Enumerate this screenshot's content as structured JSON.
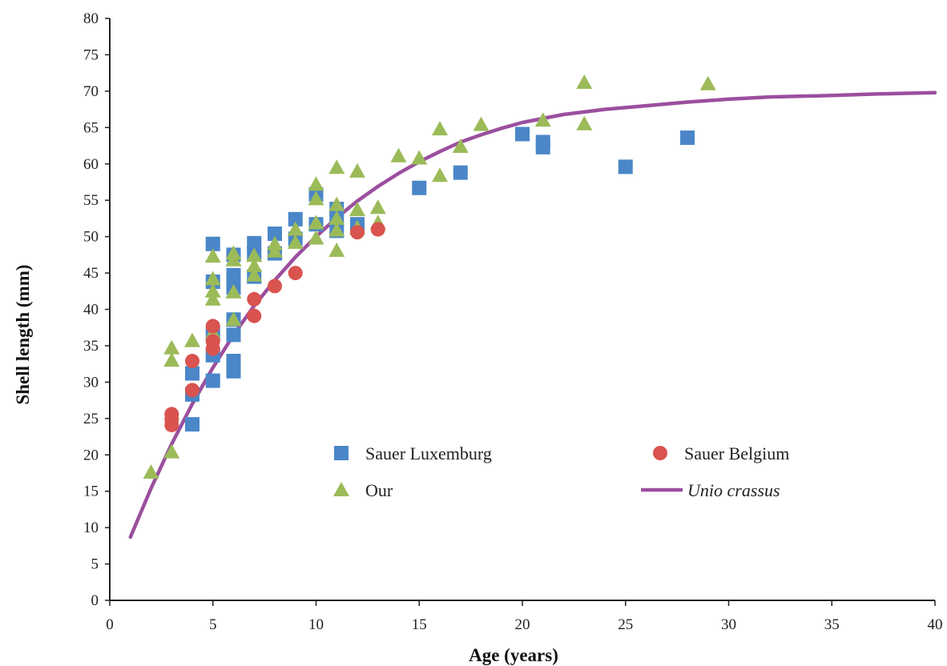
{
  "chart_data": {
    "type": "scatter",
    "xlabel": "Age (years)",
    "ylabel": "Shell length (mm)",
    "xlim": [
      0,
      40
    ],
    "ylim": [
      0,
      80
    ],
    "x_ticks": [
      0,
      5,
      10,
      15,
      20,
      25,
      30,
      35,
      40
    ],
    "y_ticks": [
      0,
      5,
      10,
      15,
      20,
      25,
      30,
      35,
      40,
      45,
      50,
      55,
      60,
      65,
      70,
      75,
      80
    ],
    "grid": false,
    "legend_position": "center-right",
    "series": [
      {
        "name": "Sauer Luxemburg",
        "marker": "square",
        "color": "#4a86c8",
        "points": [
          [
            4,
            24.2
          ],
          [
            4,
            28.3
          ],
          [
            4,
            31.2
          ],
          [
            5,
            30.2
          ],
          [
            5,
            33.7
          ],
          [
            5,
            36.7
          ],
          [
            5,
            43.8
          ],
          [
            5,
            49.0
          ],
          [
            6,
            31.5
          ],
          [
            6,
            32.9
          ],
          [
            6,
            36.5
          ],
          [
            6,
            38.6
          ],
          [
            6,
            43.0
          ],
          [
            6,
            44.7
          ],
          [
            6,
            47.5
          ],
          [
            7,
            44.5
          ],
          [
            7,
            47.7
          ],
          [
            7,
            49.1
          ],
          [
            8,
            47.7
          ],
          [
            8,
            50.4
          ],
          [
            9,
            49.7
          ],
          [
            9,
            52.4
          ],
          [
            10,
            51.7
          ],
          [
            10,
            55.8
          ],
          [
            11,
            50.8
          ],
          [
            11,
            52.5
          ],
          [
            11,
            53.8
          ],
          [
            12,
            51.7
          ],
          [
            15,
            56.7
          ],
          [
            17,
            58.8
          ],
          [
            20,
            64.1
          ],
          [
            21,
            62.3
          ],
          [
            21,
            63.0
          ],
          [
            25,
            59.6
          ],
          [
            28,
            63.6
          ]
        ]
      },
      {
        "name": "Sauer Belgium",
        "marker": "circle",
        "color": "#d9534f",
        "points": [
          [
            3,
            24.1
          ],
          [
            3,
            24.9
          ],
          [
            3,
            25.6
          ],
          [
            4,
            28.9
          ],
          [
            4,
            32.9
          ],
          [
            5,
            34.6
          ],
          [
            5,
            35.6
          ],
          [
            5,
            37.7
          ],
          [
            7,
            39.1
          ],
          [
            7,
            41.4
          ],
          [
            8,
            43.2
          ],
          [
            9,
            45.0
          ],
          [
            12,
            50.6
          ],
          [
            13,
            51.0
          ]
        ]
      },
      {
        "name": "Our",
        "marker": "triangle",
        "color": "#9bbb59",
        "points": [
          [
            2,
            17.6
          ],
          [
            3,
            20.4
          ],
          [
            3,
            33.0
          ],
          [
            3,
            34.7
          ],
          [
            4,
            35.7
          ],
          [
            5,
            36.8
          ],
          [
            5,
            41.4
          ],
          [
            5,
            42.5
          ],
          [
            5,
            44.2
          ],
          [
            5,
            47.3
          ],
          [
            6,
            38.6
          ],
          [
            6,
            42.4
          ],
          [
            6,
            46.8
          ],
          [
            6,
            47.7
          ],
          [
            7,
            44.7
          ],
          [
            7,
            46.0
          ],
          [
            7,
            47.4
          ],
          [
            8,
            48.0
          ],
          [
            8,
            49.0
          ],
          [
            9,
            49.2
          ],
          [
            9,
            51.0
          ],
          [
            10,
            49.8
          ],
          [
            10,
            51.9
          ],
          [
            10,
            55.2
          ],
          [
            10,
            57.2
          ],
          [
            11,
            48.1
          ],
          [
            11,
            50.9
          ],
          [
            11,
            52.5
          ],
          [
            11,
            54.4
          ],
          [
            11,
            59.5
          ],
          [
            12,
            51.2
          ],
          [
            12,
            53.7
          ],
          [
            12,
            59.0
          ],
          [
            13,
            51.9
          ],
          [
            13,
            54.0
          ],
          [
            14,
            61.1
          ],
          [
            15,
            60.8
          ],
          [
            16,
            58.4
          ],
          [
            16,
            64.8
          ],
          [
            17,
            62.4
          ],
          [
            18,
            65.4
          ],
          [
            21,
            66.0
          ],
          [
            23,
            65.5
          ],
          [
            23,
            71.2
          ],
          [
            29,
            71.0
          ]
        ]
      },
      {
        "name": "Unio crassus",
        "type": "line",
        "color": "#9b4f9e",
        "points": [
          [
            1,
            8.7
          ],
          [
            2,
            15.4
          ],
          [
            3,
            21.5
          ],
          [
            4,
            27.0
          ],
          [
            5,
            32.0
          ],
          [
            6,
            36.5
          ],
          [
            7,
            40.5
          ],
          [
            8,
            44.0
          ],
          [
            9,
            47.2
          ],
          [
            10,
            50.0
          ],
          [
            11,
            52.6
          ],
          [
            12,
            54.9
          ],
          [
            13,
            56.9
          ],
          [
            14,
            58.7
          ],
          [
            15,
            60.3
          ],
          [
            16,
            61.7
          ],
          [
            17,
            63.0
          ],
          [
            18,
            64.0
          ],
          [
            19,
            64.9
          ],
          [
            20,
            65.7
          ],
          [
            22,
            66.8
          ],
          [
            24,
            67.5
          ],
          [
            26,
            68.0
          ],
          [
            28,
            68.5
          ],
          [
            30,
            68.9
          ],
          [
            32,
            69.2
          ],
          [
            35,
            69.4
          ],
          [
            37,
            69.6
          ],
          [
            40,
            69.8
          ]
        ]
      }
    ]
  }
}
